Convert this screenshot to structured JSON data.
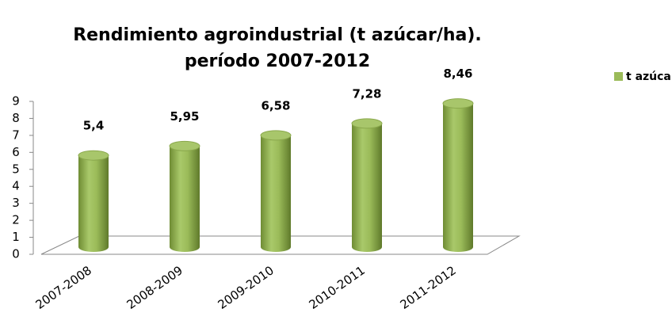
{
  "chart_data": {
    "type": "bar",
    "title": "Rendimiento agroindustrial (t azúcar/ha).",
    "subtitle": "período 2007-2012",
    "categories": [
      "2007-2008",
      "2008-2009",
      "2009-2010",
      "2010-2011",
      "2011-2012"
    ],
    "series": [
      {
        "name": "t azúcar/ha",
        "color": "#9bbb59",
        "values": [
          5.4,
          5.95,
          6.58,
          7.28,
          8.46
        ],
        "value_labels": [
          "5,4",
          "5,95",
          "6,58",
          "7,28",
          "8,46"
        ]
      }
    ],
    "ylim": [
      0,
      9
    ],
    "yticks": [
      0,
      1,
      2,
      3,
      4,
      5,
      6,
      7,
      8,
      9
    ],
    "grid": false,
    "legend": "right"
  }
}
